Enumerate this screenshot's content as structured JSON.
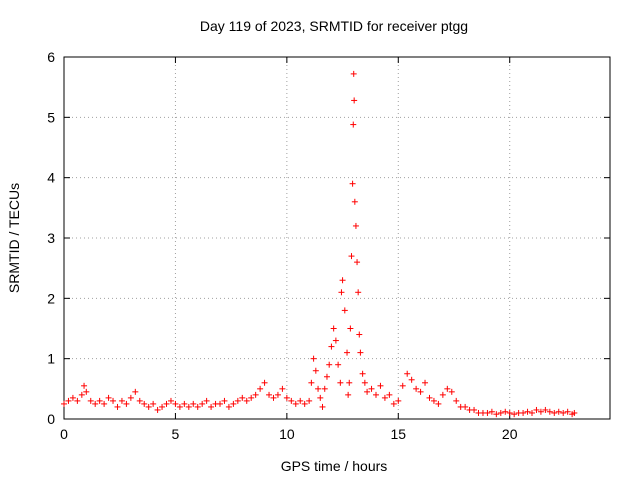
{
  "chart_data": {
    "type": "scatter",
    "title": "Day 119 of 2023, SRMTID for receiver ptgg",
    "xlabel": "GPS time / hours",
    "ylabel": "SRMTID / TECUs",
    "xlim": [
      0,
      24.5
    ],
    "ylim": [
      0,
      6
    ],
    "xticks": [
      0,
      5,
      10,
      15,
      20
    ],
    "xtick_labels": [
      "0",
      "5",
      "10",
      "15",
      "20"
    ],
    "yticks": [
      0,
      1,
      2,
      3,
      4,
      5,
      6
    ],
    "ytick_labels": [
      "0",
      "1",
      "2",
      "3",
      "4",
      "5",
      "6"
    ],
    "grid": true,
    "marker": "+",
    "color": "#ff0000",
    "series": [
      {
        "name": "SRMTID",
        "points": [
          [
            0.0,
            0.25
          ],
          [
            0.2,
            0.3
          ],
          [
            0.4,
            0.35
          ],
          [
            0.6,
            0.3
          ],
          [
            0.8,
            0.4
          ],
          [
            0.9,
            0.55
          ],
          [
            1.0,
            0.45
          ],
          [
            1.2,
            0.3
          ],
          [
            1.4,
            0.25
          ],
          [
            1.6,
            0.3
          ],
          [
            1.8,
            0.25
          ],
          [
            2.0,
            0.35
          ],
          [
            2.2,
            0.3
          ],
          [
            2.4,
            0.2
          ],
          [
            2.6,
            0.3
          ],
          [
            2.8,
            0.25
          ],
          [
            3.0,
            0.35
          ],
          [
            3.2,
            0.45
          ],
          [
            3.4,
            0.3
          ],
          [
            3.6,
            0.25
          ],
          [
            3.8,
            0.2
          ],
          [
            4.0,
            0.25
          ],
          [
            4.2,
            0.15
          ],
          [
            4.4,
            0.2
          ],
          [
            4.6,
            0.25
          ],
          [
            4.8,
            0.3
          ],
          [
            5.0,
            0.25
          ],
          [
            5.2,
            0.2
          ],
          [
            5.4,
            0.25
          ],
          [
            5.6,
            0.2
          ],
          [
            5.8,
            0.25
          ],
          [
            6.0,
            0.2
          ],
          [
            6.2,
            0.25
          ],
          [
            6.4,
            0.3
          ],
          [
            6.6,
            0.2
          ],
          [
            6.8,
            0.25
          ],
          [
            7.0,
            0.25
          ],
          [
            7.2,
            0.3
          ],
          [
            7.4,
            0.2
          ],
          [
            7.6,
            0.25
          ],
          [
            7.8,
            0.3
          ],
          [
            8.0,
            0.35
          ],
          [
            8.2,
            0.3
          ],
          [
            8.4,
            0.35
          ],
          [
            8.6,
            0.4
          ],
          [
            8.8,
            0.5
          ],
          [
            9.0,
            0.6
          ],
          [
            9.2,
            0.4
          ],
          [
            9.4,
            0.35
          ],
          [
            9.6,
            0.4
          ],
          [
            9.8,
            0.5
          ],
          [
            10.0,
            0.35
          ],
          [
            10.2,
            0.3
          ],
          [
            10.4,
            0.25
          ],
          [
            10.6,
            0.3
          ],
          [
            10.8,
            0.25
          ],
          [
            11.0,
            0.3
          ],
          [
            11.1,
            0.6
          ],
          [
            11.2,
            1.0
          ],
          [
            11.3,
            0.8
          ],
          [
            11.4,
            0.5
          ],
          [
            11.5,
            0.35
          ],
          [
            11.6,
            0.2
          ],
          [
            11.7,
            0.5
          ],
          [
            11.8,
            0.7
          ],
          [
            11.9,
            0.9
          ],
          [
            12.0,
            1.2
          ],
          [
            12.1,
            1.5
          ],
          [
            12.2,
            1.3
          ],
          [
            12.3,
            0.9
          ],
          [
            12.4,
            0.6
          ],
          [
            12.45,
            2.1
          ],
          [
            12.5,
            2.3
          ],
          [
            12.6,
            1.8
          ],
          [
            12.7,
            1.1
          ],
          [
            12.75,
            0.4
          ],
          [
            12.8,
            0.6
          ],
          [
            12.85,
            1.5
          ],
          [
            12.9,
            2.7
          ],
          [
            12.95,
            3.9
          ],
          [
            13.0,
            5.72
          ],
          [
            13.02,
            5.28
          ],
          [
            12.98,
            4.88
          ],
          [
            13.05,
            3.6
          ],
          [
            13.1,
            3.2
          ],
          [
            13.15,
            2.6
          ],
          [
            13.2,
            2.1
          ],
          [
            13.25,
            1.4
          ],
          [
            13.3,
            1.1
          ],
          [
            13.4,
            0.75
          ],
          [
            13.5,
            0.6
          ],
          [
            13.6,
            0.45
          ],
          [
            13.8,
            0.5
          ],
          [
            14.0,
            0.4
          ],
          [
            14.2,
            0.55
          ],
          [
            14.4,
            0.35
          ],
          [
            14.6,
            0.4
          ],
          [
            14.8,
            0.25
          ],
          [
            15.0,
            0.3
          ],
          [
            15.2,
            0.55
          ],
          [
            15.4,
            0.75
          ],
          [
            15.6,
            0.65
          ],
          [
            15.8,
            0.5
          ],
          [
            16.0,
            0.45
          ],
          [
            16.2,
            0.6
          ],
          [
            16.4,
            0.35
          ],
          [
            16.6,
            0.3
          ],
          [
            16.8,
            0.25
          ],
          [
            17.0,
            0.4
          ],
          [
            17.2,
            0.5
          ],
          [
            17.4,
            0.45
          ],
          [
            17.6,
            0.3
          ],
          [
            17.8,
            0.2
          ],
          [
            18.0,
            0.2
          ],
          [
            18.2,
            0.15
          ],
          [
            18.4,
            0.15
          ],
          [
            18.6,
            0.1
          ],
          [
            18.8,
            0.1
          ],
          [
            19.0,
            0.1
          ],
          [
            19.2,
            0.12
          ],
          [
            19.4,
            0.08
          ],
          [
            19.6,
            0.1
          ],
          [
            19.8,
            0.12
          ],
          [
            20.0,
            0.1
          ],
          [
            20.2,
            0.08
          ],
          [
            20.4,
            0.1
          ],
          [
            20.6,
            0.1
          ],
          [
            20.8,
            0.12
          ],
          [
            21.0,
            0.1
          ],
          [
            21.2,
            0.15
          ],
          [
            21.4,
            0.12
          ],
          [
            21.6,
            0.15
          ],
          [
            21.8,
            0.12
          ],
          [
            22.0,
            0.1
          ],
          [
            22.2,
            0.12
          ],
          [
            22.4,
            0.1
          ],
          [
            22.6,
            0.12
          ],
          [
            22.8,
            0.08
          ],
          [
            22.9,
            0.1
          ]
        ]
      }
    ]
  }
}
